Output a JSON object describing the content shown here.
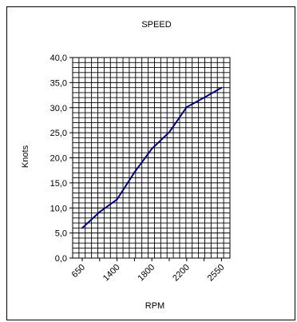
{
  "chart_data": {
    "type": "line",
    "title": "SPEED",
    "xlabel": "RPM",
    "ylabel": "Knots",
    "x_tick_labels": [
      "650",
      "",
      "1400",
      "",
      "1800",
      "",
      "2200",
      "",
      "2550"
    ],
    "y_tick_labels": [
      "0,0",
      "5,0",
      "10,0",
      "15,0",
      "20,0",
      "25,0",
      "30,0",
      "35,0",
      "40,0"
    ],
    "ylim": [
      0,
      40
    ],
    "grid": true,
    "legend": "none",
    "series": [
      {
        "values": [
          6.0,
          9.2,
          11.7,
          17.1,
          21.8,
          25.1,
          30.1,
          32.0,
          34.0
        ]
      }
    ],
    "colors": {
      "line": "#000080",
      "grid": "#000000",
      "frame": "#000000"
    }
  }
}
